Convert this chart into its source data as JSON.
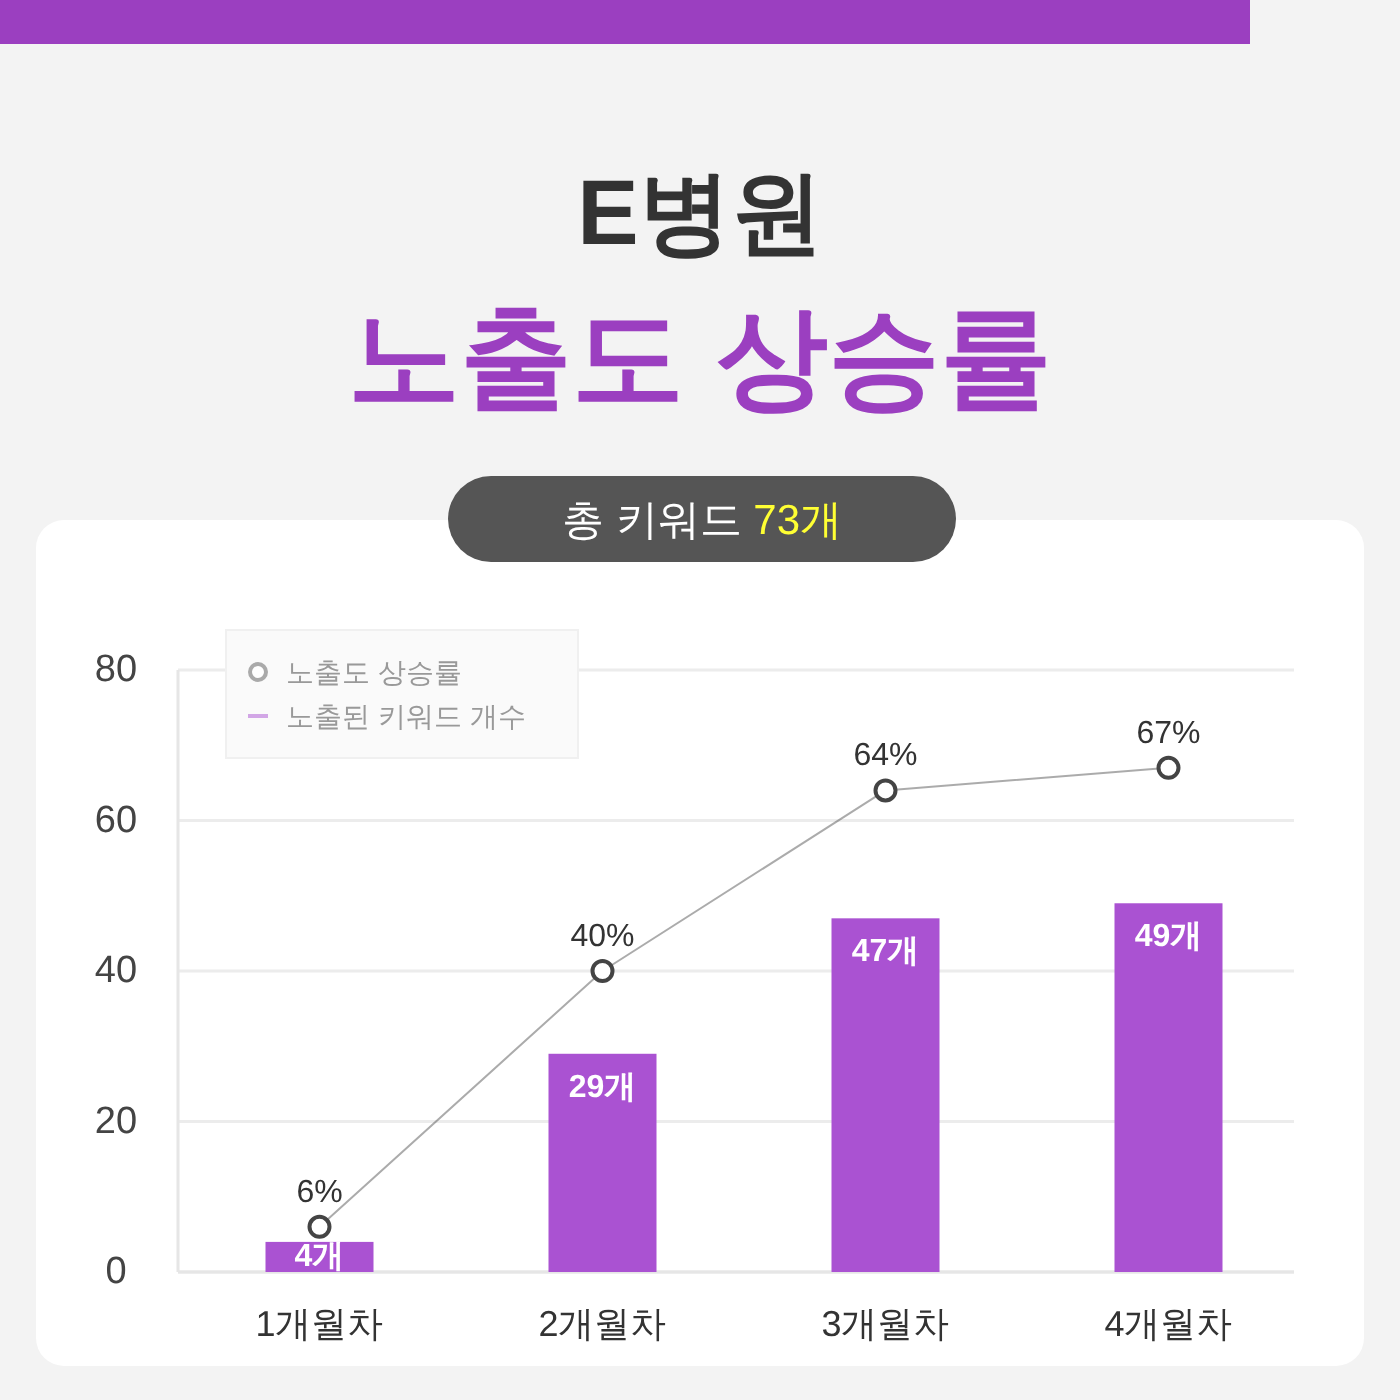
{
  "chart_data": {
    "type": "bar",
    "title": "E병원",
    "subtitle": "노출도 상승률",
    "annotations": [
      "총 키워드 73개"
    ],
    "categories": [
      "1개월차",
      "2개월차",
      "3개월차",
      "4개월차"
    ],
    "series": [
      {
        "name": "노출도 상승률",
        "type": "line",
        "color": "#444444",
        "marker": "circle",
        "values": [
          6,
          40,
          64,
          67
        ],
        "value_labels": [
          "6%",
          "40%",
          "64%",
          "67%"
        ]
      },
      {
        "name": "노출된 키워드 개수",
        "color": "#aa52d2",
        "values": [
          4,
          29,
          47,
          49
        ],
        "value_labels": [
          "4개",
          "29개",
          "47개",
          "49개"
        ]
      }
    ],
    "ylim": [
      0,
      80
    ],
    "yticks": [
      0,
      20,
      40,
      60,
      80
    ],
    "grid": "y",
    "legend": "top left"
  }
}
